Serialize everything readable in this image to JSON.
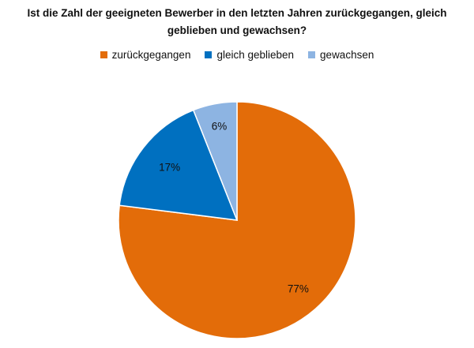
{
  "chart_data": {
    "type": "pie",
    "title": "Ist die Zahl der geeigneten Bewerber in den letzten Jahren zurückgegangen, gleich geblieben und gewachsen?",
    "legend_position": "top",
    "categories": [
      "zurückgegangen",
      "gleich geblieben",
      "gewachsen"
    ],
    "values": [
      77,
      17,
      6
    ],
    "labels": [
      "77%",
      "17%",
      "6%"
    ],
    "colors": [
      "#E36C09",
      "#0070C0",
      "#8DB4E2"
    ]
  }
}
